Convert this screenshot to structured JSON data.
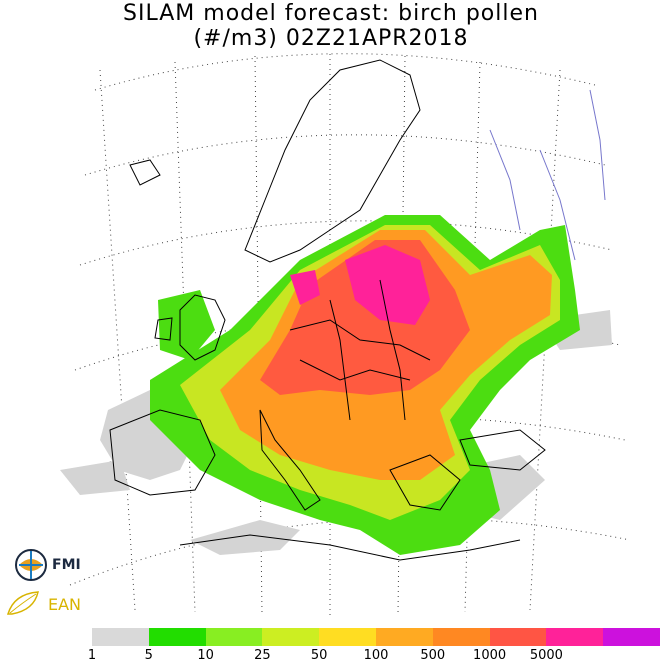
{
  "title": {
    "line1": "SILAM model forecast: birch pollen",
    "line2": "(#/m3) 02Z21APR2018"
  },
  "logos": {
    "fmi": "FMI",
    "ean": "EAN"
  },
  "legend": {
    "colors": [
      "#d9d9d9",
      "#22dd00",
      "#88ee22",
      "#ccee22",
      "#ffdd22",
      "#ffaa22",
      "#ff8822",
      "#ff5544",
      "#ff2299",
      "#cc11dd"
    ],
    "labels": [
      "1",
      "5",
      "10",
      "25",
      "50",
      "100",
      "500",
      "1000",
      "5000"
    ]
  },
  "map": {
    "land_color": "#ffffff",
    "border_color": "#000000",
    "river_color": "#7777cc",
    "graticule": "dotted"
  }
}
